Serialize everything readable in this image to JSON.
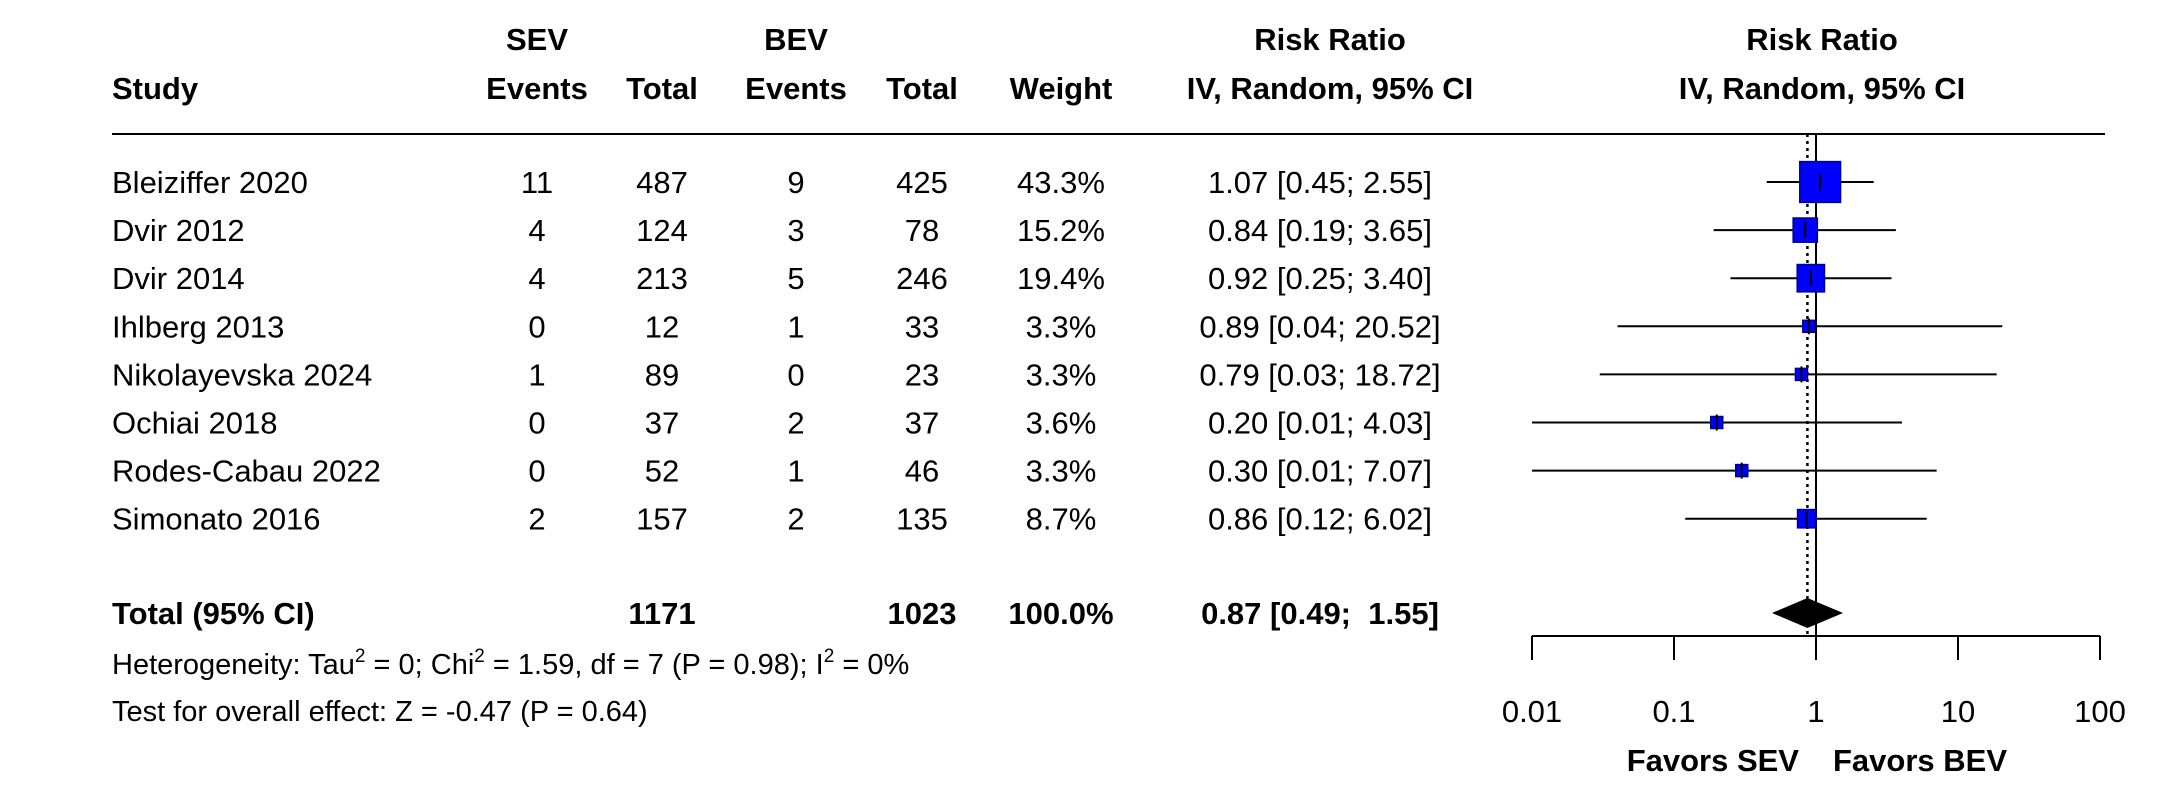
{
  "chart_data": {
    "type": "forest",
    "headers": {
      "study": "Study",
      "sev_group": "SEV",
      "bev_group": "BEV",
      "sev_events": "Events",
      "sev_total": "Total",
      "bev_events": "Events",
      "bev_total": "Total",
      "weight": "Weight",
      "rr_line1": "Risk Ratio",
      "rr_line2": "IV, Random, 95% CI",
      "plot_line1": "Risk Ratio",
      "plot_line2": "IV, Random, 95% CI"
    },
    "studies": [
      {
        "study": "Bleiziffer 2020",
        "sev_events": "11",
        "sev_total": "487",
        "bev_events": "9",
        "bev_total": "425",
        "weight": "43.3%",
        "weight_value": 43.3,
        "ci_text": "1.07 [0.45;  2.55]",
        "rr": 1.07,
        "lo": 0.45,
        "hi": 2.55
      },
      {
        "study": "Dvir 2012",
        "sev_events": "4",
        "sev_total": "124",
        "bev_events": "3",
        "bev_total": "78",
        "weight": "15.2%",
        "weight_value": 15.2,
        "ci_text": "0.84 [0.19;  3.65]",
        "rr": 0.84,
        "lo": 0.19,
        "hi": 3.65
      },
      {
        "study": "Dvir 2014",
        "sev_events": "4",
        "sev_total": "213",
        "bev_events": "5",
        "bev_total": "246",
        "weight": "19.4%",
        "weight_value": 19.4,
        "ci_text": "0.92 [0.25;  3.40]",
        "rr": 0.92,
        "lo": 0.25,
        "hi": 3.4
      },
      {
        "study": "Ihlberg 2013",
        "sev_events": "0",
        "sev_total": "12",
        "bev_events": "1",
        "bev_total": "33",
        "weight": "3.3%",
        "weight_value": 3.3,
        "ci_text": "0.89 [0.04; 20.52]",
        "rr": 0.89,
        "lo": 0.04,
        "hi": 20.52
      },
      {
        "study": "Nikolayevska 2024",
        "sev_events": "1",
        "sev_total": "89",
        "bev_events": "0",
        "bev_total": "23",
        "weight": "3.3%",
        "weight_value": 3.3,
        "ci_text": "0.79 [0.03; 18.72]",
        "rr": 0.79,
        "lo": 0.03,
        "hi": 18.72
      },
      {
        "study": "Ochiai 2018",
        "sev_events": "0",
        "sev_total": "37",
        "bev_events": "2",
        "bev_total": "37",
        "weight": "3.6%",
        "weight_value": 3.6,
        "ci_text": "0.20 [0.01;  4.03]",
        "rr": 0.2,
        "lo": 0.01,
        "hi": 4.03
      },
      {
        "study": "Rodes-Cabau 2022",
        "sev_events": "0",
        "sev_total": "52",
        "bev_events": "1",
        "bev_total": "46",
        "weight": "3.3%",
        "weight_value": 3.3,
        "ci_text": "0.30 [0.01;  7.07]",
        "rr": 0.3,
        "lo": 0.01,
        "hi": 7.07
      },
      {
        "study": "Simonato 2016",
        "sev_events": "2",
        "sev_total": "157",
        "bev_events": "2",
        "bev_total": "135",
        "weight": "8.7%",
        "weight_value": 8.7,
        "ci_text": "0.86 [0.12;  6.02]",
        "rr": 0.86,
        "lo": 0.12,
        "hi": 6.02
      }
    ],
    "total": {
      "label": "Total (95% CI)",
      "sev_total": "1171",
      "bev_total": "1023",
      "weight": "100.0%",
      "ci_text": "0.87 [0.49;  1.55]",
      "rr": 0.87,
      "lo": 0.49,
      "hi": 1.55
    },
    "heterogeneity": {
      "a": "Heterogeneity: Tau",
      "sup1": "2",
      "b": " = 0; Chi",
      "sup2": "2",
      "c": " = 1.59, df = 7 (P = 0.98); I",
      "sup3": "2",
      "d": " = 0%"
    },
    "overall_effect": "Test for overall effect: Z = -0.47 (P = 0.64)",
    "x_axis": {
      "scale": "log",
      "range": [
        0.01,
        100
      ],
      "ticks": [
        0.01,
        0.1,
        1,
        10,
        100
      ],
      "tick_labels": [
        "0.01",
        "0.1",
        "1",
        "10",
        "100"
      ],
      "reference_line": 1
    },
    "favors_left": "Favors SEV",
    "favors_right": "Favors BEV",
    "colors": {
      "square": "#0000ff",
      "square_border": "#00008b",
      "diamond": "#000000",
      "line": "#000000"
    }
  }
}
